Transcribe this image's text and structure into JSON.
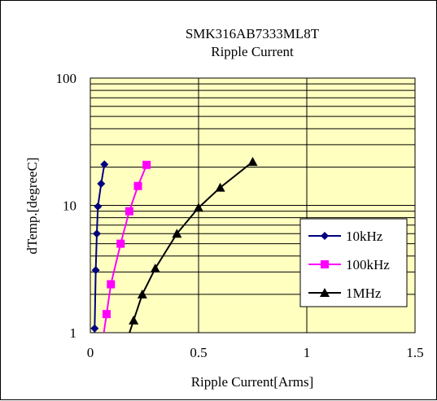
{
  "chart_data": {
    "type": "line",
    "title": "SMK316AB7333ML8T",
    "subtitle": "Ripple Current",
    "xlabel": "Ripple Current[Arms]",
    "ylabel": "dTemp.[degreeC]",
    "xlim": [
      0,
      1.5
    ],
    "ylim": [
      1,
      100
    ],
    "yscale": "log",
    "x_ticks": [
      0,
      0.5,
      1,
      1.5
    ],
    "x_tick_labels": [
      "0",
      "0.5",
      "1",
      "1.5"
    ],
    "y_ticks": [
      1,
      10,
      100
    ],
    "y_tick_labels": [
      "1",
      "10",
      "100"
    ],
    "grid": true,
    "plot_background": "#ffffc0",
    "legend_position": "lower-right",
    "series": [
      {
        "name": "10kHz",
        "color": "#000080",
        "marker": "diamond",
        "points": [
          [
            0.02,
            1.08
          ],
          [
            0.025,
            3.1
          ],
          [
            0.03,
            6.0
          ],
          [
            0.035,
            9.8
          ],
          [
            0.05,
            14.8
          ],
          [
            0.065,
            21.0
          ]
        ]
      },
      {
        "name": "100kHz",
        "color": "#ff00ff",
        "marker": "square",
        "points": [
          [
            0.075,
            1.4
          ],
          [
            0.095,
            2.4
          ],
          [
            0.14,
            5.0
          ],
          [
            0.18,
            9.0
          ],
          [
            0.22,
            14.2
          ],
          [
            0.26,
            20.8
          ]
        ]
      },
      {
        "name": "1MHz",
        "color": "#000000",
        "marker": "triangle",
        "points": [
          [
            0.2,
            1.25
          ],
          [
            0.24,
            2.0
          ],
          [
            0.3,
            3.2
          ],
          [
            0.4,
            6.0
          ],
          [
            0.5,
            9.6
          ],
          [
            0.6,
            13.8
          ],
          [
            0.75,
            22.0
          ]
        ]
      }
    ]
  }
}
